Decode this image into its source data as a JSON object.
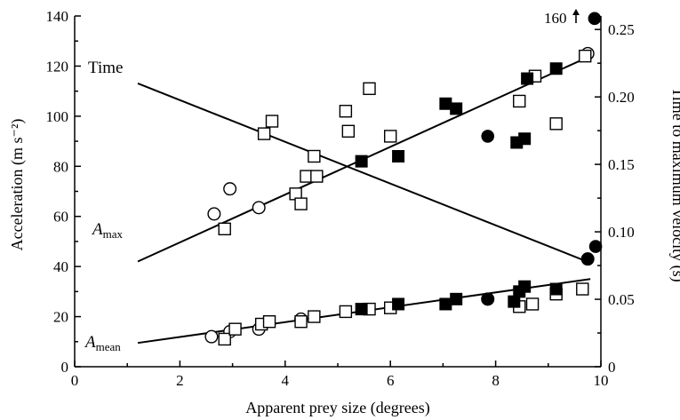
{
  "chart_data": {
    "type": "scatter",
    "xlabel": "Apparent prey size (degrees)",
    "ylabel_left": "Acceleration (m s⁻²)",
    "ylabel_right": "Time to maximum velocity (s)",
    "xlim": [
      0,
      10
    ],
    "ylim_left": [
      0,
      140
    ],
    "ylim_right": [
      0,
      0.26
    ],
    "x_ticks": [
      "0",
      "2",
      "4",
      "6",
      "8",
      "10"
    ],
    "y_left_ticks": [
      "0",
      "20",
      "40",
      "60",
      "80",
      "100",
      "120",
      "140"
    ],
    "y_right_ticks": [
      "0",
      "0.05",
      "0.10",
      "0.15",
      "0.20",
      "0.25"
    ],
    "grid": false,
    "annotations": {
      "time_line_label": "Time",
      "amax_label": {
        "main": "A",
        "sub": "max"
      },
      "amean_label": {
        "main": "A",
        "sub": "mean"
      },
      "offscale_note": "160"
    },
    "series": [
      {
        "marker": "open-circle",
        "amax": [
          [
            2.65,
            61
          ],
          [
            2.95,
            71
          ],
          [
            3.5,
            63.5
          ],
          [
            9.75,
            125
          ]
        ],
        "amean": [
          [
            2.6,
            12
          ],
          [
            2.95,
            14
          ],
          [
            3.5,
            15
          ],
          [
            4.3,
            19
          ],
          [
            7.85,
            27
          ],
          [
            9.75,
            43
          ]
        ]
      },
      {
        "marker": "filled-circle",
        "amax": [
          [
            7.85,
            92
          ],
          [
            9.88,
            139
          ]
        ],
        "amean": [
          [
            7.85,
            27
          ],
          [
            9.75,
            43
          ],
          [
            9.9,
            48
          ]
        ]
      },
      {
        "marker": "open-square",
        "amax": [
          [
            2.85,
            55
          ],
          [
            3.6,
            93
          ],
          [
            3.75,
            98
          ],
          [
            4.2,
            69
          ],
          [
            4.3,
            65
          ],
          [
            4.4,
            76
          ],
          [
            4.55,
            84
          ],
          [
            4.6,
            76
          ],
          [
            5.15,
            102
          ],
          [
            5.2,
            94
          ],
          [
            5.6,
            111
          ],
          [
            6.0,
            92
          ],
          [
            8.45,
            106
          ],
          [
            8.75,
            116
          ],
          [
            9.15,
            97
          ],
          [
            9.7,
            124
          ]
        ],
        "amean": [
          [
            2.85,
            11
          ],
          [
            3.05,
            15
          ],
          [
            3.55,
            17
          ],
          [
            3.7,
            18
          ],
          [
            4.3,
            18
          ],
          [
            4.55,
            20
          ],
          [
            5.15,
            22
          ],
          [
            5.6,
            23
          ],
          [
            6.0,
            23.5
          ],
          [
            8.45,
            24
          ],
          [
            8.7,
            25
          ],
          [
            9.15,
            29
          ],
          [
            9.65,
            31
          ]
        ]
      },
      {
        "marker": "filled-square",
        "amax": [
          [
            5.45,
            82
          ],
          [
            6.15,
            84
          ],
          [
            7.05,
            105
          ],
          [
            7.25,
            103
          ],
          [
            8.4,
            89.5
          ],
          [
            8.55,
            91
          ],
          [
            8.6,
            115
          ],
          [
            9.15,
            119
          ]
        ],
        "amean": [
          [
            5.45,
            23
          ],
          [
            6.15,
            25
          ],
          [
            7.05,
            25
          ],
          [
            7.25,
            27
          ],
          [
            8.35,
            26
          ],
          [
            8.45,
            30
          ],
          [
            8.55,
            32
          ],
          [
            9.15,
            31
          ]
        ]
      }
    ],
    "fit_lines": [
      {
        "label": "Time",
        "axis": "right",
        "x": [
          1.2,
          9.8
        ],
        "y": [
          0.21,
          0.077
        ]
      },
      {
        "label": "Amax",
        "axis": "left",
        "x": [
          1.2,
          9.8
        ],
        "y": [
          42,
          124
        ]
      },
      {
        "label": "Amean",
        "axis": "left",
        "x": [
          1.2,
          9.8
        ],
        "y": [
          9.5,
          35
        ]
      }
    ]
  }
}
